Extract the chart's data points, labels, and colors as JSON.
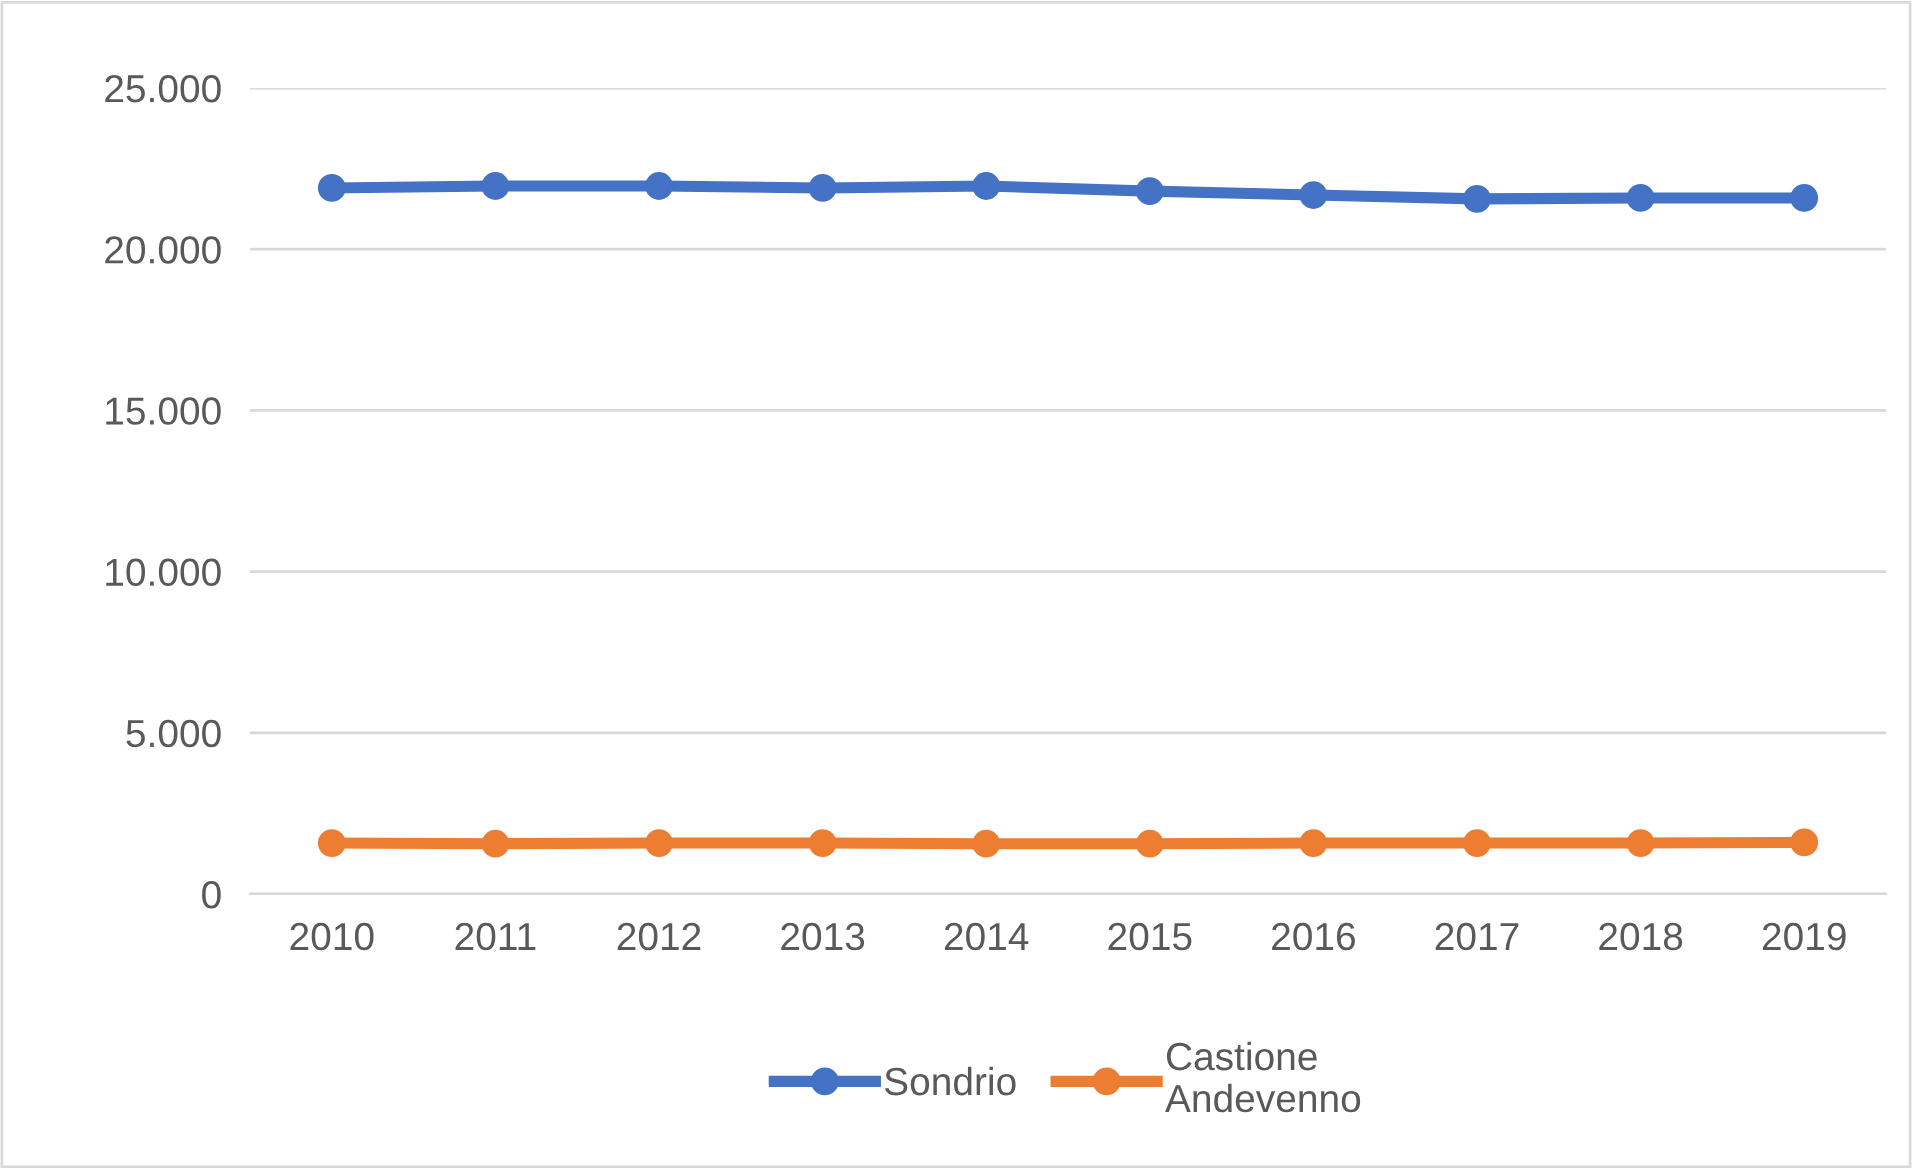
{
  "chart_data": {
    "type": "line",
    "categories": [
      "2010",
      "2011",
      "2012",
      "2013",
      "2014",
      "2015",
      "2016",
      "2017",
      "2018",
      "2019"
    ],
    "series": [
      {
        "name": "Sondrio",
        "color": "#4472c4",
        "values": [
          21900,
          21960,
          21960,
          21900,
          21960,
          21800,
          21680,
          21560,
          21590,
          21590
        ]
      },
      {
        "name": "Castione\nAndevenno",
        "color": "#ed7d31",
        "values": [
          1580,
          1560,
          1580,
          1580,
          1560,
          1560,
          1580,
          1580,
          1580,
          1600
        ]
      }
    ],
    "ylim": [
      0,
      25000
    ],
    "yticks": [
      0,
      {
        "value": 5000,
        "label": "5.000"
      },
      {
        "value": 10000,
        "label": "10.000"
      },
      {
        "value": 15000,
        "label": "15.000"
      },
      {
        "value": 20000,
        "label": "20.000"
      },
      {
        "value": 25000,
        "label": "25.000"
      }
    ],
    "grid": "y",
    "legend": "bottom",
    "marker": "circle",
    "line_style": "solid"
  }
}
